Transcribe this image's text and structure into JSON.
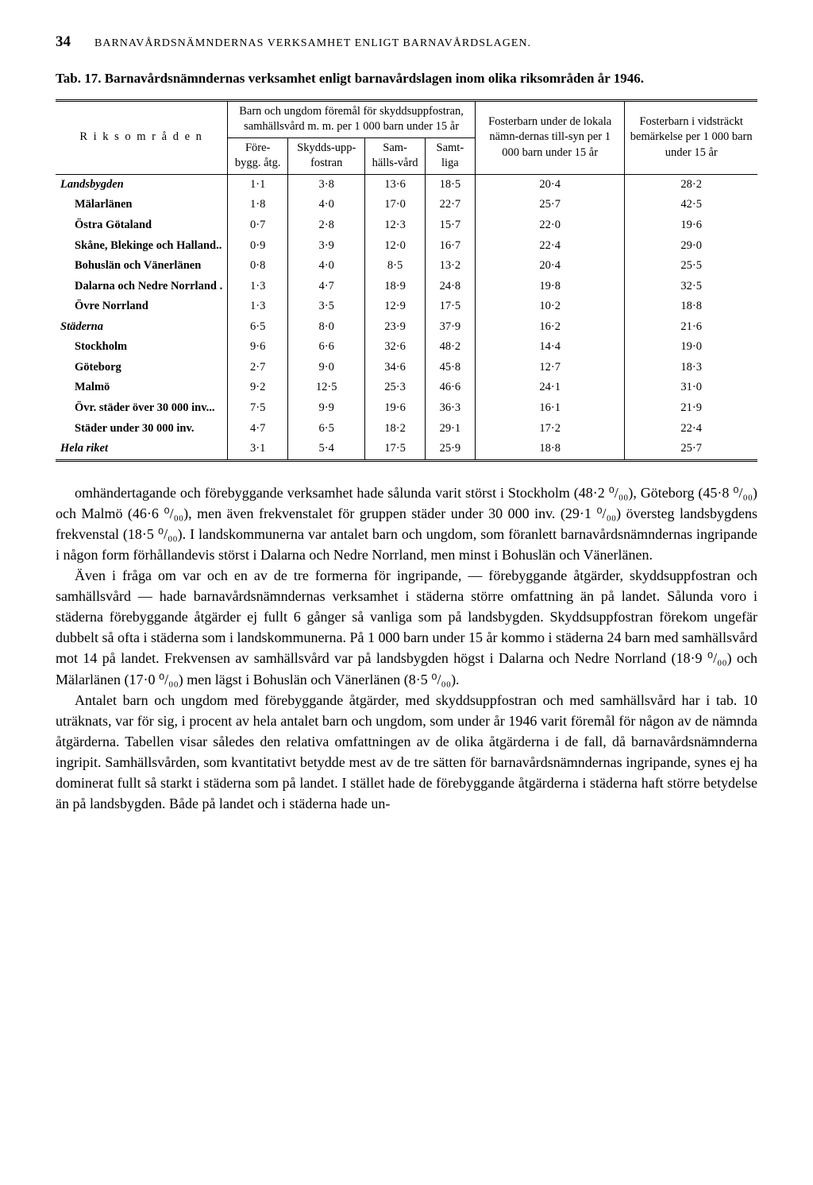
{
  "page_num": "34",
  "running_head": "BARNAVÅRDSNÄMNDERNAS VERKSAMHET ENLIGT BARNAVÅRDSLAGEN.",
  "caption": {
    "label": "Tab. 17.",
    "text": "Barnavårdsnämndernas verksamhet enligt barnavårdslagen inom olika riksområden år 1946."
  },
  "head": {
    "stub": "R i k s o m r å d e n",
    "g1": "Barn och ungdom föremål för skyddsuppfostran, samhällsvård m. m. per 1 000 barn under 15 år",
    "g2": "Fosterbarn under de lokala nämn-dernas till-syn per 1 000 barn under 15 år",
    "g3": "Fosterbarn i vidsträckt bemärkelse per 1 000 barn under 15 år",
    "c1": "Före-bygg. åtg.",
    "c2": "Skydds-upp-fostran",
    "c3": "Sam-hälls-vård",
    "c4": "Samt-liga"
  },
  "rows": [
    {
      "label": "Landsbygden",
      "em": true,
      "indent": false,
      "v": [
        "1·1",
        "3·8",
        "13·6",
        "18·5",
        "20·4",
        "28·2"
      ]
    },
    {
      "label": "Mälarlänen",
      "em": false,
      "indent": true,
      "v": [
        "1·8",
        "4·0",
        "17·0",
        "22·7",
        "25·7",
        "42·5"
      ]
    },
    {
      "label": "Östra Götaland",
      "em": false,
      "indent": true,
      "v": [
        "0·7",
        "2·8",
        "12·3",
        "15·7",
        "22·0",
        "19·6"
      ]
    },
    {
      "label": "Skåne, Blekinge och Halland..",
      "em": false,
      "indent": true,
      "v": [
        "0·9",
        "3·9",
        "12·0",
        "16·7",
        "22·4",
        "29·0"
      ]
    },
    {
      "label": "Bohuslän och Vänerlänen",
      "em": false,
      "indent": true,
      "v": [
        "0·8",
        "4·0",
        "8·5",
        "13·2",
        "20·4",
        "25·5"
      ]
    },
    {
      "label": "Dalarna och Nedre Norrland .",
      "em": false,
      "indent": true,
      "v": [
        "1·3",
        "4·7",
        "18·9",
        "24·8",
        "19·8",
        "32·5"
      ]
    },
    {
      "label": "Övre Norrland",
      "em": false,
      "indent": true,
      "v": [
        "1·3",
        "3·5",
        "12·9",
        "17·5",
        "10·2",
        "18·8"
      ]
    },
    {
      "label": "Städerna",
      "em": true,
      "indent": false,
      "v": [
        "6·5",
        "8·0",
        "23·9",
        "37·9",
        "16·2",
        "21·6"
      ]
    },
    {
      "label": "Stockholm",
      "em": false,
      "indent": true,
      "v": [
        "9·6",
        "6·6",
        "32·6",
        "48·2",
        "14·4",
        "19·0"
      ]
    },
    {
      "label": "Göteborg",
      "em": false,
      "indent": true,
      "v": [
        "2·7",
        "9·0",
        "34·6",
        "45·8",
        "12·7",
        "18·3"
      ]
    },
    {
      "label": "Malmö",
      "em": false,
      "indent": true,
      "v": [
        "9·2",
        "12·5",
        "25·3",
        "46·6",
        "24·1",
        "31·0"
      ]
    },
    {
      "label": "Övr. städer över 30 000 inv...",
      "em": false,
      "indent": true,
      "v": [
        "7·5",
        "9·9",
        "19·6",
        "36·3",
        "16·1",
        "21·9"
      ]
    },
    {
      "label": "Städer under 30 000 inv.",
      "em": false,
      "indent": true,
      "v": [
        "4·7",
        "6·5",
        "18·2",
        "29·1",
        "17·2",
        "22·4"
      ]
    },
    {
      "label": "Hela riket",
      "em": true,
      "indent": false,
      "v": [
        "3·1",
        "5·4",
        "17·5",
        "25·9",
        "18·8",
        "25·7"
      ]
    }
  ],
  "paras": [
    "omhändertagande och förebyggande verksamhet hade sålunda varit störst i Stockholm (48·2 ⁰/₀₀), Göteborg (45·8 ⁰/₀₀) och Malmö (46·6 ⁰/₀₀), men även frekvenstalet för gruppen städer under 30 000 inv. (29·1 ⁰/₀₀) översteg landsbygdens frekvenstal (18·5 ⁰/₀₀). I landskommunerna var antalet barn och ungdom, som föranlett barnavårdsnämndernas ingripande i någon form förhållandevis störst i Dalarna och Nedre Norrland, men minst i Bohuslän och Vänerlänen.",
    "Även i fråga om var och en av de tre formerna för ingripande, — förebyggande åtgärder, skyddsuppfostran och samhällsvård — hade barnavårdsnämndernas verksamhet i städerna större omfattning än på landet. Sålunda voro i städerna förebyggande åtgärder ej fullt 6 gånger så vanliga som på landsbygden. Skyddsuppfostran förekom ungefär dubbelt så ofta i städerna som i landskommunerna. På 1 000 barn under 15 år kommo i städerna 24 barn med samhällsvård mot 14 på landet. Frekvensen av samhällsvård var på landsbygden högst i Dalarna och Nedre Norrland (18·9 ⁰/₀₀) och Mälarlänen (17·0 ⁰/₀₀) men lägst i Bohuslän och Vänerlänen (8·5 ⁰/₀₀).",
    "Antalet barn och ungdom med förebyggande åtgärder, med skyddsuppfostran och med samhällsvård har i tab. 10 uträknats, var för sig, i procent av hela antalet barn och ungdom, som under år 1946 varit föremål för någon av de nämnda åtgärderna. Tabellen visar således den relativa omfattningen av de olika åtgärderna i de fall, då barnavårdsnämnderna ingripit. Samhällsvården, som kvantitativt betydde mest av de tre sätten för barnavårdsnämndernas ingripande, synes ej ha dominerat fullt så starkt i städerna som på landet. I stället hade de förebyggande åtgärderna i städerna haft större betydelse än på landsbygden. Både på landet och i städerna hade un-"
  ]
}
